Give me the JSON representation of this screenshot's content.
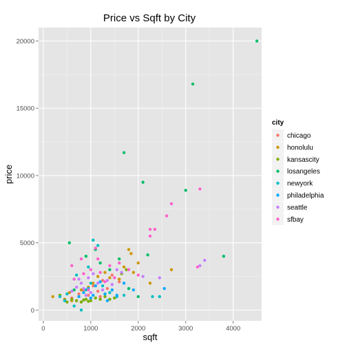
{
  "chart_data": {
    "type": "scatter",
    "title": "Price vs Sqft by City",
    "xlabel": "sqft",
    "ylabel": "price",
    "xlim": [
      -100,
      4600
    ],
    "ylim": [
      -800,
      21000
    ],
    "xticks": [
      0,
      1000,
      2000,
      3000,
      4000
    ],
    "yticks": [
      0,
      5000,
      10000,
      15000,
      20000
    ],
    "xtick_labels": [
      "0",
      "1000",
      "2000",
      "3000",
      "4000"
    ],
    "ytick_labels": [
      "0",
      "5000",
      "10000",
      "15000",
      "20000"
    ],
    "grid": true,
    "legend": {
      "title": "city",
      "position": "right"
    },
    "series": [
      {
        "name": "chicago",
        "color": "#F8766D",
        "points": [
          [
            600,
            900
          ],
          [
            750,
            1200
          ],
          [
            850,
            1500
          ],
          [
            950,
            1100
          ],
          [
            1050,
            1800
          ],
          [
            1150,
            1400
          ],
          [
            1250,
            2200
          ],
          [
            1350,
            1600
          ],
          [
            1450,
            2600
          ],
          [
            1600,
            2100
          ],
          [
            700,
            700
          ],
          [
            1200,
            1000
          ]
        ]
      },
      {
        "name": "honolulu",
        "color": "#CD9600",
        "points": [
          [
            200,
            1000
          ],
          [
            450,
            800
          ],
          [
            550,
            1300
          ],
          [
            800,
            1500
          ],
          [
            1050,
            2000
          ],
          [
            1150,
            2500
          ],
          [
            1300,
            2800
          ],
          [
            1400,
            2400
          ],
          [
            1600,
            2300
          ],
          [
            1800,
            4500
          ],
          [
            1850,
            4200
          ],
          [
            1900,
            2800
          ],
          [
            2000,
            3500
          ],
          [
            2250,
            2000
          ],
          [
            2700,
            3000
          ],
          [
            1700,
            3200
          ],
          [
            950,
            1700
          ],
          [
            600,
            700
          ]
        ]
      },
      {
        "name": "kansascity",
        "color": "#7CAE00",
        "points": [
          [
            350,
            1100
          ],
          [
            500,
            600
          ],
          [
            600,
            800
          ],
          [
            700,
            700
          ],
          [
            800,
            600
          ],
          [
            900,
            800
          ],
          [
            1000,
            700
          ],
          [
            1100,
            900
          ],
          [
            1200,
            800
          ],
          [
            1300,
            1000
          ],
          [
            1400,
            800
          ],
          [
            1500,
            900
          ],
          [
            1650,
            2700
          ],
          [
            1750,
            3000
          ],
          [
            950,
            650
          ],
          [
            850,
            750
          ]
        ]
      },
      {
        "name": "losangeles",
        "color": "#00BE67",
        "points": [
          [
            4500,
            20000
          ],
          [
            3150,
            16800
          ],
          [
            1700,
            11700
          ],
          [
            2100,
            9500
          ],
          [
            3000,
            8900
          ],
          [
            3800,
            4000
          ],
          [
            2200,
            4100
          ],
          [
            550,
            5000
          ],
          [
            900,
            4000
          ],
          [
            1100,
            4500
          ],
          [
            1200,
            3500
          ],
          [
            1400,
            3000
          ],
          [
            1600,
            3800
          ],
          [
            650,
            1500
          ],
          [
            1300,
            1200
          ],
          [
            1800,
            1600
          ],
          [
            2000,
            1000
          ]
        ]
      },
      {
        "name": "newyork",
        "color": "#00BFC4",
        "points": [
          [
            800,
            0
          ],
          [
            650,
            300
          ],
          [
            350,
            1000
          ],
          [
            450,
            700
          ],
          [
            900,
            1500
          ],
          [
            1000,
            2000
          ],
          [
            1050,
            5200
          ],
          [
            1150,
            4800
          ],
          [
            950,
            3200
          ],
          [
            700,
            2600
          ],
          [
            1250,
            1800
          ],
          [
            500,
            1200
          ],
          [
            1400,
            1300
          ],
          [
            1550,
            1000
          ],
          [
            1700,
            1100
          ],
          [
            2300,
            1000
          ],
          [
            2450,
            1000
          ]
        ]
      },
      {
        "name": "philadelphia",
        "color": "#00A9FF",
        "points": [
          [
            750,
            1000
          ],
          [
            850,
            1300
          ],
          [
            950,
            1600
          ],
          [
            1050,
            1100
          ],
          [
            1100,
            1800
          ],
          [
            1200,
            2100
          ],
          [
            1300,
            1200
          ],
          [
            1450,
            1500
          ],
          [
            1550,
            1100
          ],
          [
            1700,
            2000
          ],
          [
            1900,
            1500
          ],
          [
            1000,
            900
          ],
          [
            2550,
            1600
          ],
          [
            1350,
            700
          ]
        ]
      },
      {
        "name": "seattle",
        "color": "#C77CFF",
        "points": [
          [
            600,
            1400
          ],
          [
            700,
            1700
          ],
          [
            800,
            2000
          ],
          [
            850,
            1600
          ],
          [
            950,
            2400
          ],
          [
            1000,
            1300
          ],
          [
            1050,
            2700
          ],
          [
            1150,
            2000
          ],
          [
            1250,
            1500
          ],
          [
            1350,
            2200
          ],
          [
            1450,
            1900
          ],
          [
            1550,
            3000
          ],
          [
            1650,
            2800
          ],
          [
            2100,
            2500
          ],
          [
            2450,
            2400
          ],
          [
            3300,
            3300
          ],
          [
            3400,
            3700
          ],
          [
            750,
            2300
          ],
          [
            900,
            1100
          ]
        ]
      },
      {
        "name": "sfbay",
        "color": "#FF61CC",
        "points": [
          [
            3300,
            9000
          ],
          [
            2700,
            7900
          ],
          [
            2600,
            7000
          ],
          [
            2250,
            6000
          ],
          [
            2350,
            6000
          ],
          [
            2250,
            5500
          ],
          [
            1100,
            4600
          ],
          [
            600,
            3300
          ],
          [
            800,
            3800
          ],
          [
            1000,
            3000
          ],
          [
            1200,
            2800
          ],
          [
            1400,
            3300
          ],
          [
            1600,
            3500
          ],
          [
            1800,
            3000
          ],
          [
            2000,
            2600
          ],
          [
            3250,
            3200
          ],
          [
            650,
            2300
          ],
          [
            850,
            2700
          ],
          [
            950,
            1500
          ],
          [
            1150,
            3800
          ],
          [
            1300,
            2100
          ],
          [
            1500,
            2400
          ]
        ]
      }
    ]
  }
}
